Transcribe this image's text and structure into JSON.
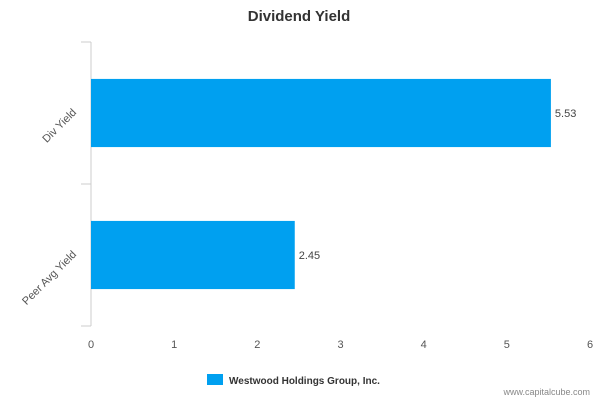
{
  "chart_data": {
    "type": "bar",
    "orientation": "horizontal",
    "title": "Dividend Yield",
    "categories": [
      "Div Yield",
      "Peer Avg Yield"
    ],
    "series": [
      {
        "name": "Westwood Holdings Group, Inc.",
        "values": [
          5.53,
          2.45
        ]
      }
    ],
    "data_labels": [
      "5.53",
      "2.45"
    ],
    "xlim": [
      0,
      6
    ],
    "x_ticks": [
      "0",
      "1",
      "2",
      "3",
      "4",
      "5",
      "6"
    ],
    "grid": false,
    "legend_position": "bottom",
    "bar_color": "#00A0F0"
  },
  "footer": {
    "source": "www.capitalcube.com"
  }
}
